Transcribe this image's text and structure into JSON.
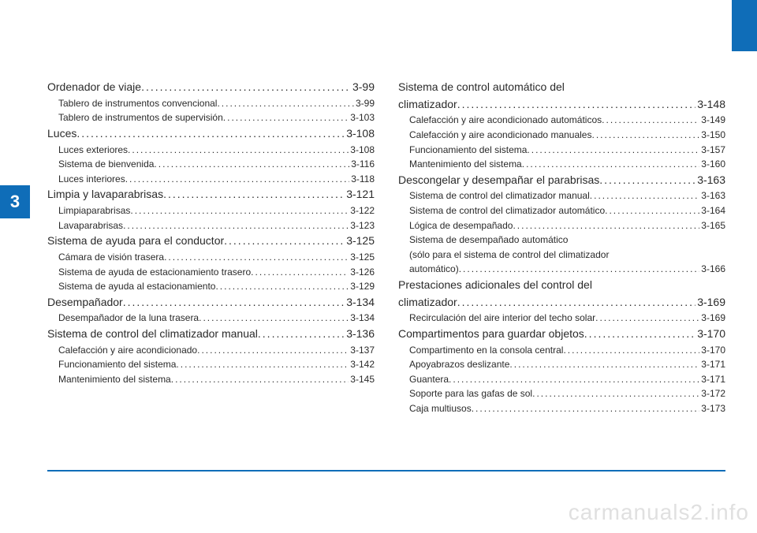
{
  "chapter": "3",
  "watermark": "carmanuals2.info",
  "left": [
    {
      "type": "section",
      "title": "Ordenador de viaje",
      "page": "3-99"
    },
    {
      "type": "sub",
      "title": "Tablero de instrumentos convencional",
      "page": "3-99"
    },
    {
      "type": "sub",
      "title": "Tablero de instrumentos de supervisión",
      "page": "3-103"
    },
    {
      "type": "section",
      "title": "Luces",
      "page": "3-108"
    },
    {
      "type": "sub",
      "title": "Luces exteriores",
      "page": "3-108"
    },
    {
      "type": "sub",
      "title": "Sistema de bienvenida",
      "page": "3-116"
    },
    {
      "type": "sub",
      "title": "Luces interiores",
      "page": "3-118"
    },
    {
      "type": "section",
      "title": "Limpia y lavaparabrisas",
      "page": "3-121"
    },
    {
      "type": "sub",
      "title": "Limpiaparabrisas",
      "page": "3-122"
    },
    {
      "type": "sub",
      "title": "Lavaparabrisas",
      "page": "3-123"
    },
    {
      "type": "section",
      "title": "Sistema de ayuda para el conductor",
      "page": "3-125"
    },
    {
      "type": "sub",
      "title": "Cámara de visión trasera",
      "page": "3-125"
    },
    {
      "type": "sub",
      "title": "Sistema de ayuda de estacionamiento trasero",
      "page": "3-126"
    },
    {
      "type": "sub",
      "title": "Sistema de ayuda al estacionamiento",
      "page": "3-129"
    },
    {
      "type": "section",
      "title": "Desempañador",
      "page": "3-134"
    },
    {
      "type": "sub",
      "title": "Desempañador de la luna trasera",
      "page": "3-134"
    },
    {
      "type": "section",
      "title": "Sistema de control del climatizador manual",
      "page": "3-136"
    },
    {
      "type": "sub",
      "title": "Calefacción y aire acondicionado",
      "page": "3-137"
    },
    {
      "type": "sub",
      "title": "Funcionamiento del sistema",
      "page": "3-142"
    },
    {
      "type": "sub",
      "title": "Mantenimiento del sistema",
      "page": "3-145"
    }
  ],
  "right": [
    {
      "type": "section-ml",
      "title1": "Sistema de control automático del",
      "title2": "climatizador",
      "page": "3-148"
    },
    {
      "type": "sub",
      "title": "Calefacción y aire acondicionado automáticos",
      "page": "3-149"
    },
    {
      "type": "sub",
      "title": "Calefacción y aire acondicionado manuales",
      "page": "3-150"
    },
    {
      "type": "sub",
      "title": "Funcionamiento del sistema",
      "page": "3-157"
    },
    {
      "type": "sub",
      "title": "Mantenimiento del sistema",
      "page": "3-160"
    },
    {
      "type": "section",
      "title": "Descongelar y desempañar el parabrisas",
      "page": "3-163"
    },
    {
      "type": "sub",
      "title": "Sistema de control del climatizador manual",
      "page": "3-163"
    },
    {
      "type": "sub",
      "title": "Sistema de control del climatizador automático",
      "page": "3-164"
    },
    {
      "type": "sub",
      "title": "Lógica de desempañado",
      "page": "3-165"
    },
    {
      "type": "sub-ml",
      "title1": "Sistema de desempañado automático",
      "title2": "(sólo para el sistema de control del climatizador",
      "title3": "automático)",
      "page": "3-166"
    },
    {
      "type": "section-ml",
      "title1": "Prestaciones adicionales del control del",
      "title2": "climatizador",
      "page": "3-169"
    },
    {
      "type": "sub",
      "title": "Recirculación del aire interior del techo solar",
      "page": "3-169"
    },
    {
      "type": "section",
      "title": "Compartimentos para guardar objetos",
      "page": "3-170"
    },
    {
      "type": "sub",
      "title": "Compartimento en la consola central",
      "page": "3-170"
    },
    {
      "type": "sub",
      "title": "Apoyabrazos deslizante",
      "page": "3-171"
    },
    {
      "type": "sub",
      "title": "Guantera",
      "page": "3-171"
    },
    {
      "type": "sub",
      "title": "Soporte para las gafas de sol",
      "page": "3-172"
    },
    {
      "type": "sub",
      "title": "Caja multiusos",
      "page": "3-173"
    }
  ]
}
